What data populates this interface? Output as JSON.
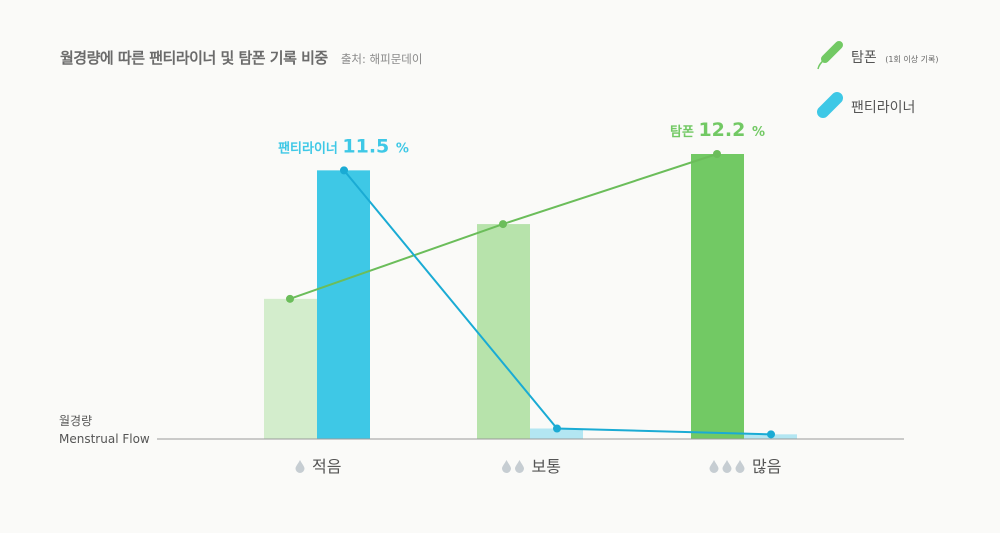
{
  "header": {
    "title": "월경량에 따른 팬티라이너 및 탐폰 기록 비중",
    "source": "출처: 해피문데이"
  },
  "legend": [
    {
      "label": "탐폰",
      "note": "(1회 이상 기록)",
      "color": "#72c964",
      "icon": "tampon-icon"
    },
    {
      "label": "팬티라이너",
      "note": "",
      "color": "#3ec8e6",
      "icon": "pantyliner-icon"
    }
  ],
  "colors": {
    "liner": "#3ec8e6",
    "liner_light": "#b3e6f2",
    "liner_line": "#1aabd4",
    "tampon": "#72c964",
    "tampon_medium": "#b7e3ab",
    "tampon_light": "#d3edcc",
    "tampon_line": "#6bbd5a",
    "axis": "#9a9a9a",
    "drop": "#c6cdd2"
  },
  "chart_data": {
    "type": "bar",
    "title": "월경량에 따른 팬티라이너 및 탐폰 기록 비중",
    "xlabel": "월경량 Menstrual Flow",
    "ylabel_lines": [
      "월경량",
      "Menstrual Flow"
    ],
    "categories": [
      "적음",
      "보통",
      "많음"
    ],
    "category_drops": [
      1,
      2,
      3
    ],
    "ylim": [
      0,
      12.5
    ],
    "series": [
      {
        "name": "탐폰",
        "values": [
          6.0,
          9.2,
          12.2
        ],
        "line": true
      },
      {
        "name": "팬티라이너",
        "values": [
          11.5,
          0.45,
          0.2
        ],
        "line": true
      }
    ],
    "annotations": [
      {
        "series": "팬티라이너",
        "category": "적음",
        "label": "팬티라이너",
        "value": "11.5",
        "unit": "%"
      },
      {
        "series": "탐폰",
        "category": "많음",
        "label": "탐폰",
        "value": "12.2",
        "unit": "%"
      }
    ],
    "grid": false
  }
}
